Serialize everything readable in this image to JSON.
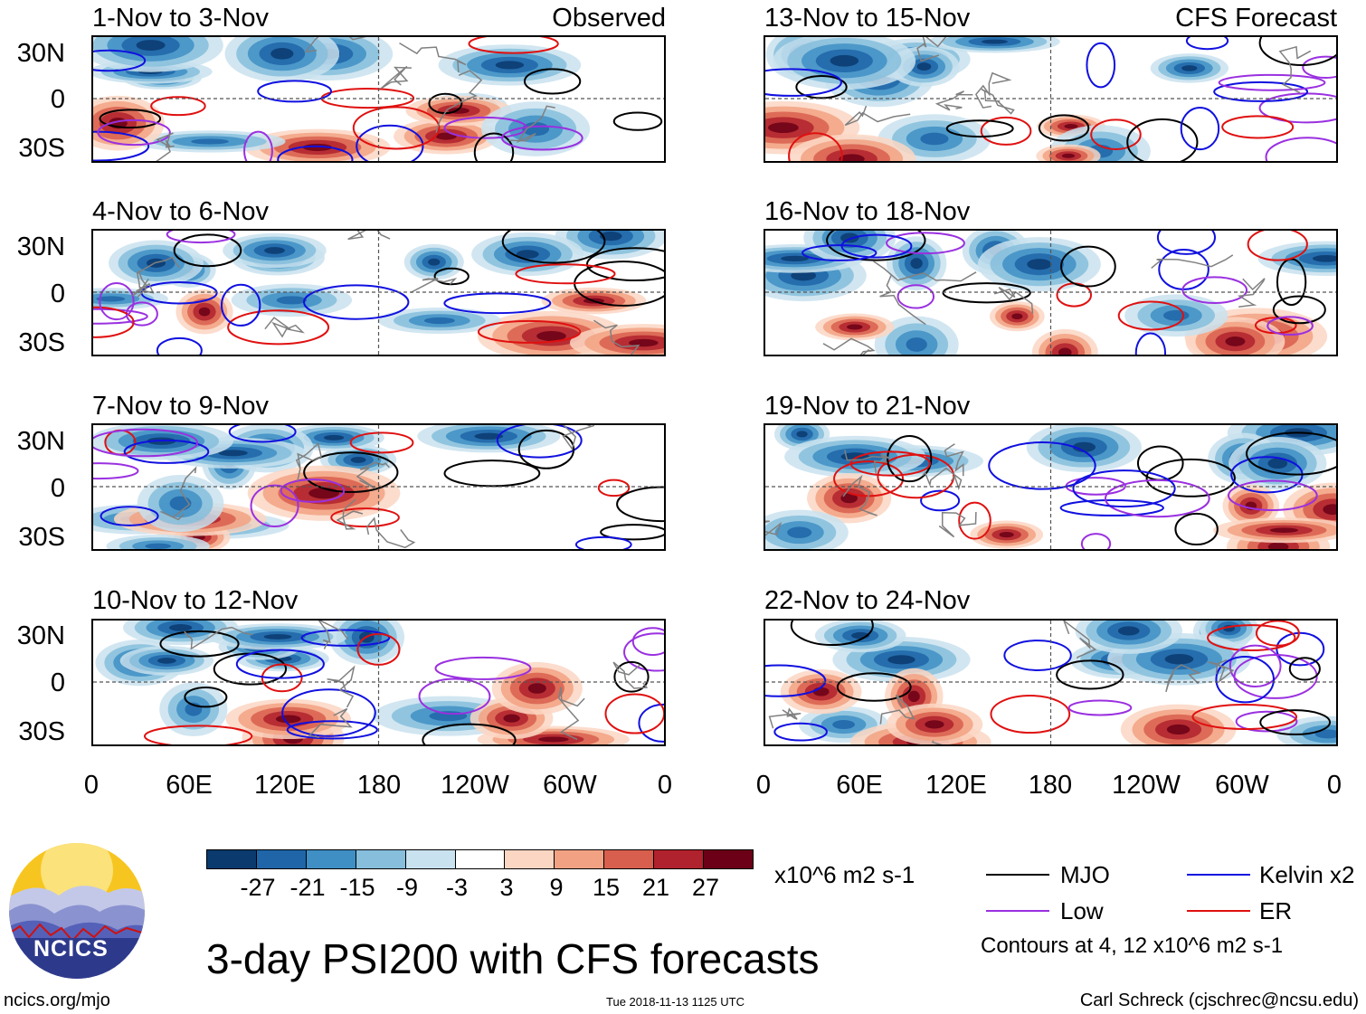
{
  "panels_left": {
    "label": "Observed",
    "items": [
      {
        "title": "1-Nov to 3-Nov"
      },
      {
        "title": "4-Nov to 6-Nov"
      },
      {
        "title": "7-Nov to 9-Nov"
      },
      {
        "title": "10-Nov to 12-Nov"
      }
    ]
  },
  "panels_right": {
    "label": "CFS Forecast",
    "items": [
      {
        "title": "13-Nov to 15-Nov"
      },
      {
        "title": "16-Nov to 18-Nov"
      },
      {
        "title": "19-Nov to 21-Nov"
      },
      {
        "title": "22-Nov to 24-Nov"
      }
    ]
  },
  "y_ticks": [
    "30N",
    "0",
    "30S"
  ],
  "x_ticks": [
    "0",
    "60E",
    "120E",
    "180",
    "120W",
    "60W",
    "0"
  ],
  "colorbar": {
    "colors": [
      "#0a3a6e",
      "#1f65a8",
      "#3f8fc5",
      "#86bedc",
      "#c9e2ef",
      "#ffffff",
      "#fbd6c3",
      "#f2a283",
      "#d85f4e",
      "#b0222d",
      "#6b0016"
    ],
    "ticks": [
      "-27",
      "-21",
      "-15",
      "-9",
      "-3",
      "3",
      "9",
      "15",
      "21",
      "27"
    ],
    "units": "x10^6 m2 s-1"
  },
  "legend": {
    "items": [
      {
        "label": "MJO",
        "color": "#000000"
      },
      {
        "label": "Kelvin x2",
        "color": "#1010e0"
      },
      {
        "label": "Low",
        "color": "#9a30e0"
      },
      {
        "label": "ER",
        "color": "#e01010"
      }
    ],
    "contours_note": "Contours at 4, 12 x10^6 m2 s-1"
  },
  "title": "3-day PSI200 with CFS forecasts",
  "logo_text": "NCICS",
  "footer": {
    "left": "ncics.org/mjo",
    "middle": "Tue 2018-11-13 1125 UTC",
    "right": "Carl Schreck (cjschrec@ncsu.edu)"
  }
}
